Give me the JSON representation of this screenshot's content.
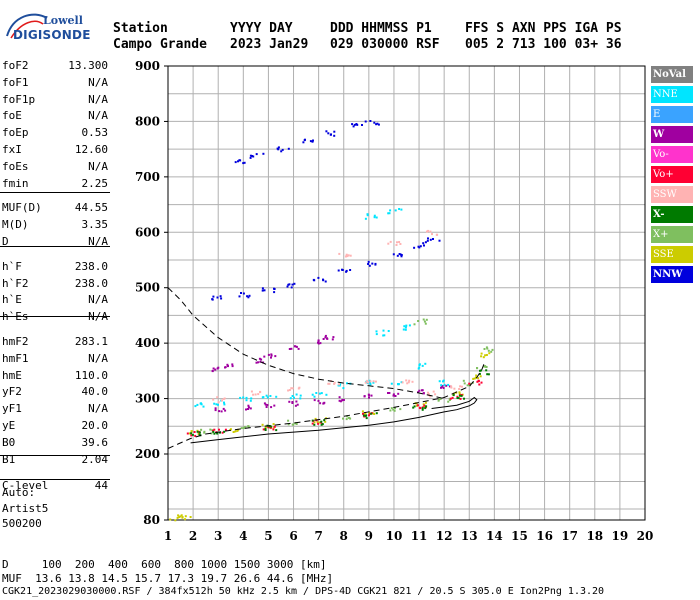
{
  "logo": {
    "top": "Lowell",
    "bottom": "DIGISONDE"
  },
  "header": {
    "row1": [
      {
        "text": "Station",
        "bold": true
      },
      {
        "text": "YYYY DAY",
        "bold": true
      },
      {
        "text": "DDD HHMMSS P1",
        "bold": true
      },
      {
        "text": "FFS S AXN PPS IGA PS",
        "bold": true
      }
    ],
    "row2": [
      {
        "text": "Campo Grande",
        "bold": true
      },
      {
        "text": "2023 Jan29",
        "bold": true
      },
      {
        "text": "029 030000 RSF",
        "bold": true
      },
      {
        "text": "005 2 713 100 03+ 36",
        "bold": true
      }
    ]
  },
  "params": [
    {
      "label": "foF2",
      "value": "13.300"
    },
    {
      "label": "foF1",
      "value": "N/A"
    },
    {
      "label": "foF1p",
      "value": "N/A"
    },
    {
      "label": "foE",
      "value": "N/A"
    },
    {
      "label": "foEp",
      "value": "0.53"
    },
    {
      "label": "fxI",
      "value": "12.60"
    },
    {
      "label": "foEs",
      "value": "N/A"
    },
    {
      "label": "fmin",
      "value": "2.25"
    },
    {
      "label": "MUF(D)",
      "value": "44.55"
    },
    {
      "label": "M(D)",
      "value": "3.35"
    },
    {
      "label": "D",
      "value": "N/A"
    },
    {
      "label": "h`F",
      "value": "238.0"
    },
    {
      "label": "h`F2",
      "value": "238.0"
    },
    {
      "label": "h`E",
      "value": "N/A"
    },
    {
      "label": "h`Es",
      "value": "N/A"
    },
    {
      "label": "hmF2",
      "value": "283.1"
    },
    {
      "label": "hmF1",
      "value": "N/A"
    },
    {
      "label": "hmE",
      "value": "110.0"
    },
    {
      "label": "yF2",
      "value": "40.0"
    },
    {
      "label": "yF1",
      "value": "N/A"
    },
    {
      "label": "yE",
      "value": "20.0"
    },
    {
      "label": "B0",
      "value": "39.6"
    },
    {
      "label": "B1",
      "value": "2.04"
    },
    {
      "label": "C-level",
      "value": "44"
    }
  ],
  "autoscaling": {
    "line1": "Auto:",
    "line2": "Artist5",
    "line3": "500200"
  },
  "legend": [
    {
      "label": "NoVal",
      "bg": "#808080",
      "fg": "#ffffff",
      "bold": true
    },
    {
      "label": "NNE",
      "bg": "#00e5ff",
      "fg": "#ffffff",
      "bold": false
    },
    {
      "label": "E",
      "bg": "#3aa3ff",
      "fg": "#ffffff",
      "bold": false
    },
    {
      "label": "W",
      "bg": "#a000a0",
      "fg": "#ffffff",
      "bold": true
    },
    {
      "label": "Vo-",
      "bg": "#ff33cc",
      "fg": "#ffffff",
      "bold": false
    },
    {
      "label": "Vo+",
      "bg": "#ff0033",
      "fg": "#ffffff",
      "bold": false
    },
    {
      "label": "SSW",
      "bg": "#ffb3b3",
      "fg": "#ffffff",
      "bold": false
    },
    {
      "label": "X-",
      "bg": "#007a00",
      "fg": "#ffffff",
      "bold": true
    },
    {
      "label": "X+",
      "bg": "#7fbf5f",
      "fg": "#ffffff",
      "bold": false
    },
    {
      "label": "SSE",
      "bg": "#cccc00",
      "fg": "#ffffff",
      "bold": false
    },
    {
      "label": "NNW",
      "bg": "#0000dd",
      "fg": "#ffffff",
      "bold": true
    }
  ],
  "footer": {
    "line1": "D     100  200  400  600  800 1000 1500 3000 [km]",
    "line2": "MUF  13.6 13.8 14.5 15.7 17.3 19.7 26.6 44.6 [MHz]",
    "line3": "CGK21_2023029030000.RSF / 384fx512h 50 kHz 2.5 km / DPS-4D CGK21 821 / 20.5 S 305.0 E Ion2Png 1.3.20"
  },
  "chart_data": {
    "type": "scatter",
    "title": "",
    "xlabel": "",
    "ylabel": "",
    "xlim": [
      1,
      20
    ],
    "ylim": [
      80,
      900
    ],
    "x_ticks": [
      "1",
      "2",
      "3",
      "4",
      "5",
      "6",
      "7",
      "8",
      "9",
      "10",
      "11",
      "12",
      "13",
      "14",
      "15",
      "16",
      "17",
      "18",
      "19",
      "20"
    ],
    "y_ticks": [
      "900",
      "800",
      "700",
      "600",
      "500",
      "400",
      "300",
      "200",
      "80"
    ],
    "grid": true,
    "legend_position": "right",
    "series": [
      {
        "name": "NNW",
        "color": "#0000dd",
        "points": [
          [
            3.8,
            728
          ],
          [
            4.5,
            740
          ],
          [
            5.5,
            752
          ],
          [
            6.5,
            765
          ],
          [
            7.5,
            780
          ],
          [
            8.5,
            795
          ],
          [
            9.1,
            800
          ],
          [
            2.8,
            482
          ],
          [
            4.0,
            488
          ],
          [
            5.0,
            497
          ],
          [
            6.0,
            505
          ],
          [
            7.0,
            515
          ],
          [
            8.0,
            530
          ],
          [
            9.0,
            545
          ],
          [
            10.0,
            562
          ],
          [
            11.0,
            578
          ],
          [
            11.5,
            588
          ]
        ]
      },
      {
        "name": "W",
        "color": "#a000a0",
        "points": [
          [
            2.8,
            355
          ],
          [
            3.5,
            360
          ],
          [
            4.5,
            370
          ],
          [
            5.0,
            378
          ],
          [
            6.0,
            395
          ],
          [
            7.0,
            405
          ],
          [
            7.5,
            412
          ],
          [
            3.0,
            283
          ],
          [
            4.0,
            286
          ],
          [
            5.0,
            290
          ],
          [
            6.0,
            293
          ],
          [
            7.0,
            296
          ],
          [
            8.0,
            300
          ],
          [
            9.0,
            305
          ],
          [
            10.0,
            310
          ],
          [
            11.0,
            315
          ],
          [
            12.0,
            322
          ]
        ]
      },
      {
        "name": "NNE",
        "color": "#00e5ff",
        "points": [
          [
            2.2,
            290
          ],
          [
            3.0,
            295
          ],
          [
            4.0,
            300
          ],
          [
            5.0,
            305
          ],
          [
            6.0,
            305
          ],
          [
            7.0,
            308
          ],
          [
            8.0,
            325
          ],
          [
            9.0,
            330
          ],
          [
            10.0,
            330
          ],
          [
            11.0,
            360
          ],
          [
            12.0,
            330
          ],
          [
            9.5,
            420
          ],
          [
            10.5,
            430
          ],
          [
            9.0,
            630
          ],
          [
            10.0,
            640
          ]
        ]
      },
      {
        "name": "SSW",
        "color": "#ffb3b3",
        "points": [
          [
            3.0,
            300
          ],
          [
            4.5,
            310
          ],
          [
            6.0,
            320
          ],
          [
            7.5,
            330
          ],
          [
            9.0,
            335
          ],
          [
            10.5,
            330
          ],
          [
            11.5,
            310
          ],
          [
            12.5,
            320
          ],
          [
            8.0,
            560
          ],
          [
            10.0,
            580
          ],
          [
            11.5,
            600
          ]
        ]
      },
      {
        "name": "X+",
        "color": "#7fbf5f",
        "points": [
          [
            2.5,
            243
          ],
          [
            4.0,
            248
          ],
          [
            6.0,
            258
          ],
          [
            8.0,
            268
          ],
          [
            10.0,
            282
          ],
          [
            12.0,
            300
          ],
          [
            13.0,
            330
          ],
          [
            13.5,
            360
          ],
          [
            13.8,
            390
          ],
          [
            11.0,
            440
          ]
        ]
      },
      {
        "name": "SSE",
        "color": "#cccc00",
        "points": [
          [
            2.0,
            240
          ],
          [
            3.5,
            246
          ],
          [
            5.0,
            252
          ],
          [
            7.0,
            262
          ],
          [
            9.0,
            275
          ],
          [
            11.0,
            290
          ],
          [
            12.5,
            310
          ],
          [
            13.3,
            340
          ],
          [
            13.6,
            380
          ],
          [
            1.3,
            85
          ],
          [
            1.6,
            87
          ]
        ]
      },
      {
        "name": "Vo+",
        "color": "#ff0033",
        "points": [
          [
            2.0,
            238
          ],
          [
            3.0,
            242
          ],
          [
            5.0,
            250
          ],
          [
            7.0,
            260
          ],
          [
            9.0,
            272
          ],
          [
            11.0,
            288
          ],
          [
            12.5,
            305
          ],
          [
            13.2,
            330
          ]
        ]
      },
      {
        "name": "X-",
        "color": "#007a00",
        "points": [
          [
            2.0,
            238
          ],
          [
            3.0,
            241
          ],
          [
            5.0,
            249
          ],
          [
            7.0,
            259
          ],
          [
            9.0,
            271
          ],
          [
            11.0,
            286
          ],
          [
            12.5,
            305
          ],
          [
            13.5,
            350
          ]
        ]
      }
    ],
    "profile_solid": [
      [
        1.9,
        220
      ],
      [
        3,
        226
      ],
      [
        5,
        236
      ],
      [
        7,
        243
      ],
      [
        9,
        252
      ],
      [
        10,
        258
      ],
      [
        11,
        266
      ],
      [
        12,
        276
      ],
      [
        12.5,
        280
      ],
      [
        13,
        287
      ],
      [
        13.2,
        292
      ],
      [
        13.3,
        298
      ],
      [
        13.2,
        302
      ],
      [
        13.0,
        295
      ],
      [
        12.5,
        288
      ],
      [
        11.5,
        282
      ]
    ],
    "trace_dashed": [
      [
        1.0,
        210
      ],
      [
        1.4,
        218
      ],
      [
        1.9,
        228
      ],
      [
        2.5,
        236
      ],
      [
        4,
        246
      ],
      [
        6,
        256
      ],
      [
        8,
        268
      ],
      [
        10,
        284
      ],
      [
        11,
        293
      ],
      [
        12,
        302
      ],
      [
        12.5,
        312
      ],
      [
        13,
        322
      ],
      [
        13.3,
        338
      ],
      [
        13.5,
        352
      ],
      [
        13.6,
        364
      ]
    ],
    "profile_dashed": [
      [
        1.0,
        500
      ],
      [
        1.5,
        478
      ],
      [
        2,
        450
      ],
      [
        3,
        410
      ],
      [
        4,
        380
      ],
      [
        5,
        360
      ],
      [
        6,
        345
      ],
      [
        7,
        335
      ],
      [
        8,
        328
      ],
      [
        9,
        323
      ],
      [
        10,
        318
      ],
      [
        11,
        310
      ],
      [
        12,
        300
      ]
    ]
  }
}
